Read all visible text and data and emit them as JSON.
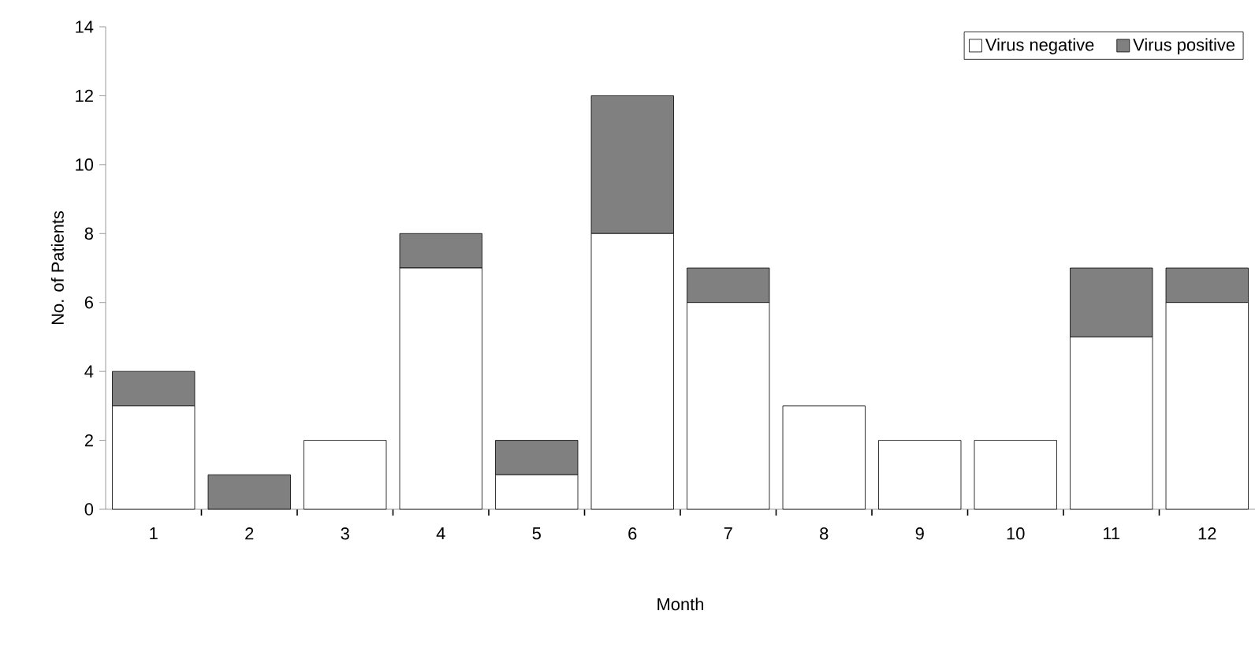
{
  "chart_data": {
    "type": "bar",
    "stacked": true,
    "xlabel": "Month",
    "ylabel": "No. of Patients",
    "categories": [
      "1",
      "2",
      "3",
      "4",
      "5",
      "6",
      "7",
      "8",
      "9",
      "10",
      "11",
      "12"
    ],
    "series": [
      {
        "name": "Virus negative",
        "color": "#ffffff",
        "values": [
          3,
          0,
          2,
          7,
          1,
          8,
          6,
          3,
          2,
          2,
          5,
          6
        ]
      },
      {
        "name": "Virus positive",
        "color": "#808080",
        "values": [
          1,
          1,
          0,
          1,
          1,
          4,
          1,
          0,
          0,
          0,
          2,
          1
        ]
      }
    ],
    "ylim": [
      0,
      14
    ],
    "yticks": [
      0,
      2,
      4,
      6,
      8,
      10,
      12,
      14
    ],
    "legend": "top right",
    "grid": false
  }
}
